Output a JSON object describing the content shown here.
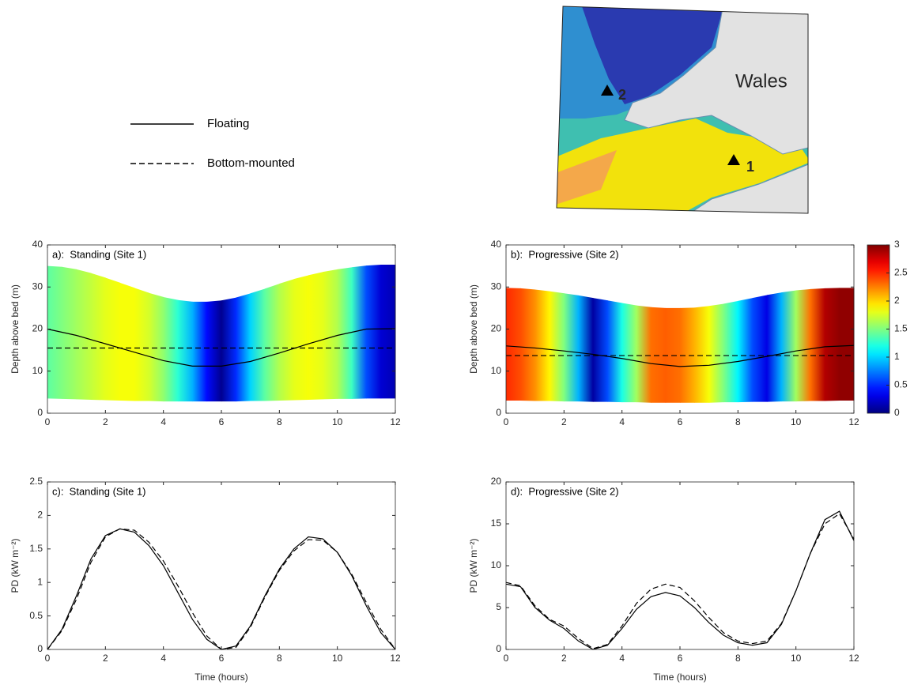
{
  "legend": {
    "entries": [
      {
        "name": "Floating",
        "style": "solid"
      },
      {
        "name": "Bottom-mounted",
        "style": "dashed"
      }
    ]
  },
  "map": {
    "label": "Wales",
    "sites": [
      "1",
      "2"
    ]
  },
  "chart_data": [
    {
      "type": "field",
      "title": "a):  Standing (Site 1)",
      "y_label": "Depth above bed (m)",
      "xlim": [
        0,
        12
      ],
      "xticks": [
        0,
        2,
        4,
        6,
        8,
        10,
        12
      ],
      "ylim": [
        0,
        40
      ],
      "yticks": [
        0,
        10,
        20,
        30,
        40
      ],
      "clim": [
        0,
        3
      ],
      "colormap": "jet",
      "field": {
        "x": [
          0,
          0.5,
          1,
          1.5,
          2,
          2.5,
          3,
          3.5,
          4,
          4.5,
          5,
          5.5,
          6,
          6.5,
          7,
          7.5,
          8,
          8.5,
          9,
          9.5,
          10,
          10.5,
          11,
          11.5,
          12
        ],
        "surface": [
          35,
          34.8,
          34.2,
          33.3,
          32.2,
          31,
          29.8,
          28.6,
          27.6,
          26.9,
          26.5,
          26.5,
          26.8,
          27.5,
          28.5,
          29.6,
          30.8,
          31.9,
          32.8,
          33.6,
          34.2,
          34.7,
          35.1,
          35.3,
          35.3
        ],
        "bed": [
          3.5,
          3.4,
          3.3,
          3.2,
          3.1,
          3,
          2.9,
          2.9,
          2.8,
          2.8,
          2.8,
          2.8,
          2.8,
          2.8,
          2.9,
          2.9,
          3,
          3.1,
          3.2,
          3.3,
          3.4,
          3.4,
          3.5,
          3.5,
          3.5
        ],
        "values": [
          1.4,
          1.5,
          1.6,
          1.7,
          1.8,
          1.85,
          1.85,
          1.75,
          1.55,
          1.25,
          0.9,
          0.4,
          0.05,
          0.5,
          1,
          1.4,
          1.65,
          1.8,
          1.85,
          1.8,
          1.65,
          1.3,
          0.6,
          0.25,
          0.15
        ]
      },
      "series": [
        {
          "style": "solid",
          "color": "#000000",
          "x": [
            0,
            1,
            2,
            3,
            4,
            5,
            6,
            7,
            8,
            9,
            10,
            11,
            12
          ],
          "values": [
            20,
            18.5,
            16.5,
            14.5,
            12.5,
            11.2,
            11.2,
            12.3,
            14.3,
            16.5,
            18.5,
            20,
            20.1
          ]
        },
        {
          "style": "dashed",
          "color": "#000000",
          "x": [
            0,
            12
          ],
          "values": [
            15.5,
            15.5
          ]
        }
      ]
    },
    {
      "type": "field",
      "title": "b):  Progressive (Site 2)",
      "y_label": "Depth above bed (m)",
      "xlim": [
        0,
        12
      ],
      "xticks": [
        0,
        2,
        4,
        6,
        8,
        10,
        12
      ],
      "ylim": [
        0,
        40
      ],
      "yticks": [
        0,
        10,
        20,
        30,
        40
      ],
      "clim": [
        0,
        3
      ],
      "colormap": "jet",
      "cticks": [
        0,
        0.5,
        1,
        1.5,
        2,
        2.5,
        3
      ],
      "field": {
        "x": [
          0,
          0.5,
          1,
          1.5,
          2,
          2.5,
          3,
          3.5,
          4,
          4.5,
          5,
          5.5,
          6,
          6.5,
          7,
          7.5,
          8,
          8.5,
          9,
          9.5,
          10,
          10.5,
          11,
          11.5,
          12
        ],
        "surface": [
          29.8,
          29.7,
          29.4,
          29,
          28.5,
          28,
          27.4,
          26.8,
          26.2,
          25.6,
          25.2,
          25,
          25,
          25.1,
          25.5,
          26,
          26.7,
          27.4,
          28.1,
          28.7,
          29.2,
          29.5,
          29.7,
          29.8,
          29.8
        ],
        "bed": [
          3,
          3,
          2.9,
          2.9,
          2.8,
          2.8,
          2.7,
          2.7,
          2.6,
          2.6,
          2.5,
          2.5,
          2.5,
          2.5,
          2.5,
          2.6,
          2.6,
          2.7,
          2.7,
          2.8,
          2.8,
          2.9,
          2.9,
          3,
          3
        ],
        "values": [
          2.5,
          2.4,
          2.2,
          1.9,
          1.5,
          0.9,
          0.1,
          0.6,
          1.2,
          1.6,
          2.3,
          2.35,
          2.3,
          2.1,
          1.85,
          1.5,
          1.1,
          0.6,
          0.3,
          0.9,
          1.6,
          2.3,
          2.85,
          2.95,
          2.95
        ]
      },
      "series": [
        {
          "style": "solid",
          "color": "#000000",
          "x": [
            0,
            1,
            2,
            3,
            4,
            5,
            6,
            7,
            8,
            9,
            10,
            11,
            12
          ],
          "values": [
            16,
            15.5,
            14.8,
            14,
            13,
            11.8,
            11.1,
            11.4,
            12.3,
            13.5,
            14.8,
            15.8,
            16.1
          ]
        },
        {
          "style": "dashed",
          "color": "#000000",
          "x": [
            0,
            12
          ],
          "values": [
            13.7,
            13.7
          ]
        }
      ]
    },
    {
      "type": "line",
      "title": "c):  Standing (Site 1)",
      "y_label": "PD (kW m⁻²)",
      "x_label": "Time (hours)",
      "xlim": [
        0,
        12
      ],
      "xticks": [
        0,
        2,
        4,
        6,
        8,
        10,
        12
      ],
      "ylim": [
        0,
        2.5
      ],
      "yticks": [
        0,
        0.5,
        1,
        1.5,
        2,
        2.5
      ],
      "series": [
        {
          "style": "solid",
          "color": "#000000",
          "x": [
            0,
            0.5,
            1,
            1.5,
            2,
            2.5,
            3,
            3.5,
            4,
            4.5,
            5,
            5.5,
            6,
            6.5,
            7,
            7.5,
            8,
            8.5,
            9,
            9.5,
            10,
            10.5,
            11,
            11.5,
            12
          ],
          "values": [
            0,
            0.3,
            0.8,
            1.35,
            1.7,
            1.8,
            1.75,
            1.55,
            1.25,
            0.85,
            0.45,
            0.15,
            0,
            0.05,
            0.35,
            0.8,
            1.2,
            1.5,
            1.68,
            1.65,
            1.45,
            1.1,
            0.65,
            0.25,
            0
          ]
        },
        {
          "style": "dashed",
          "color": "#000000",
          "x": [
            0,
            0.5,
            1,
            1.5,
            2,
            2.5,
            3,
            3.5,
            4,
            4.5,
            5,
            5.5,
            6,
            6.5,
            7,
            7.5,
            8,
            8.5,
            9,
            9.5,
            10,
            10.5,
            11,
            11.5,
            12
          ],
          "values": [
            0,
            0.28,
            0.75,
            1.3,
            1.68,
            1.8,
            1.78,
            1.6,
            1.32,
            0.95,
            0.55,
            0.2,
            0,
            0.03,
            0.33,
            0.78,
            1.18,
            1.47,
            1.64,
            1.63,
            1.45,
            1.12,
            0.7,
            0.3,
            0
          ]
        }
      ]
    },
    {
      "type": "line",
      "title": "d):  Progressive (Site 2)",
      "y_label": "PD (kW m⁻²)",
      "x_label": "Time (hours)",
      "xlim": [
        0,
        12
      ],
      "xticks": [
        0,
        2,
        4,
        6,
        8,
        10,
        12
      ],
      "ylim": [
        0,
        20
      ],
      "yticks": [
        0,
        5,
        10,
        15,
        20
      ],
      "series": [
        {
          "style": "solid",
          "color": "#000000",
          "x": [
            0,
            0.5,
            1,
            1.5,
            2,
            2.5,
            3,
            3.5,
            4,
            4.5,
            5,
            5.5,
            6,
            6.5,
            7,
            7.5,
            8,
            8.5,
            9,
            9.5,
            10,
            10.5,
            11,
            11.5,
            12
          ],
          "values": [
            7.8,
            7.5,
            5,
            3.5,
            2.5,
            1,
            0,
            0.5,
            2.5,
            4.8,
            6.3,
            6.8,
            6.4,
            5,
            3.2,
            1.7,
            0.8,
            0.5,
            0.8,
            3,
            7,
            11.5,
            15.5,
            16.5,
            13
          ]
        },
        {
          "style": "dashed",
          "color": "#000000",
          "x": [
            0,
            0.5,
            1,
            1.5,
            2,
            2.5,
            3,
            3.5,
            4,
            4.5,
            5,
            5.5,
            6,
            6.5,
            7,
            7.5,
            8,
            8.5,
            9,
            9.5,
            10,
            10.5,
            11,
            11.5,
            12
          ],
          "values": [
            8,
            7.6,
            5.2,
            3.6,
            2.8,
            1.3,
            0.1,
            0.6,
            2.8,
            5.5,
            7.2,
            7.8,
            7.4,
            5.8,
            3.8,
            2,
            1,
            0.7,
            1,
            3.1,
            7,
            11.5,
            15,
            16.2,
            13.2
          ]
        }
      ]
    }
  ]
}
